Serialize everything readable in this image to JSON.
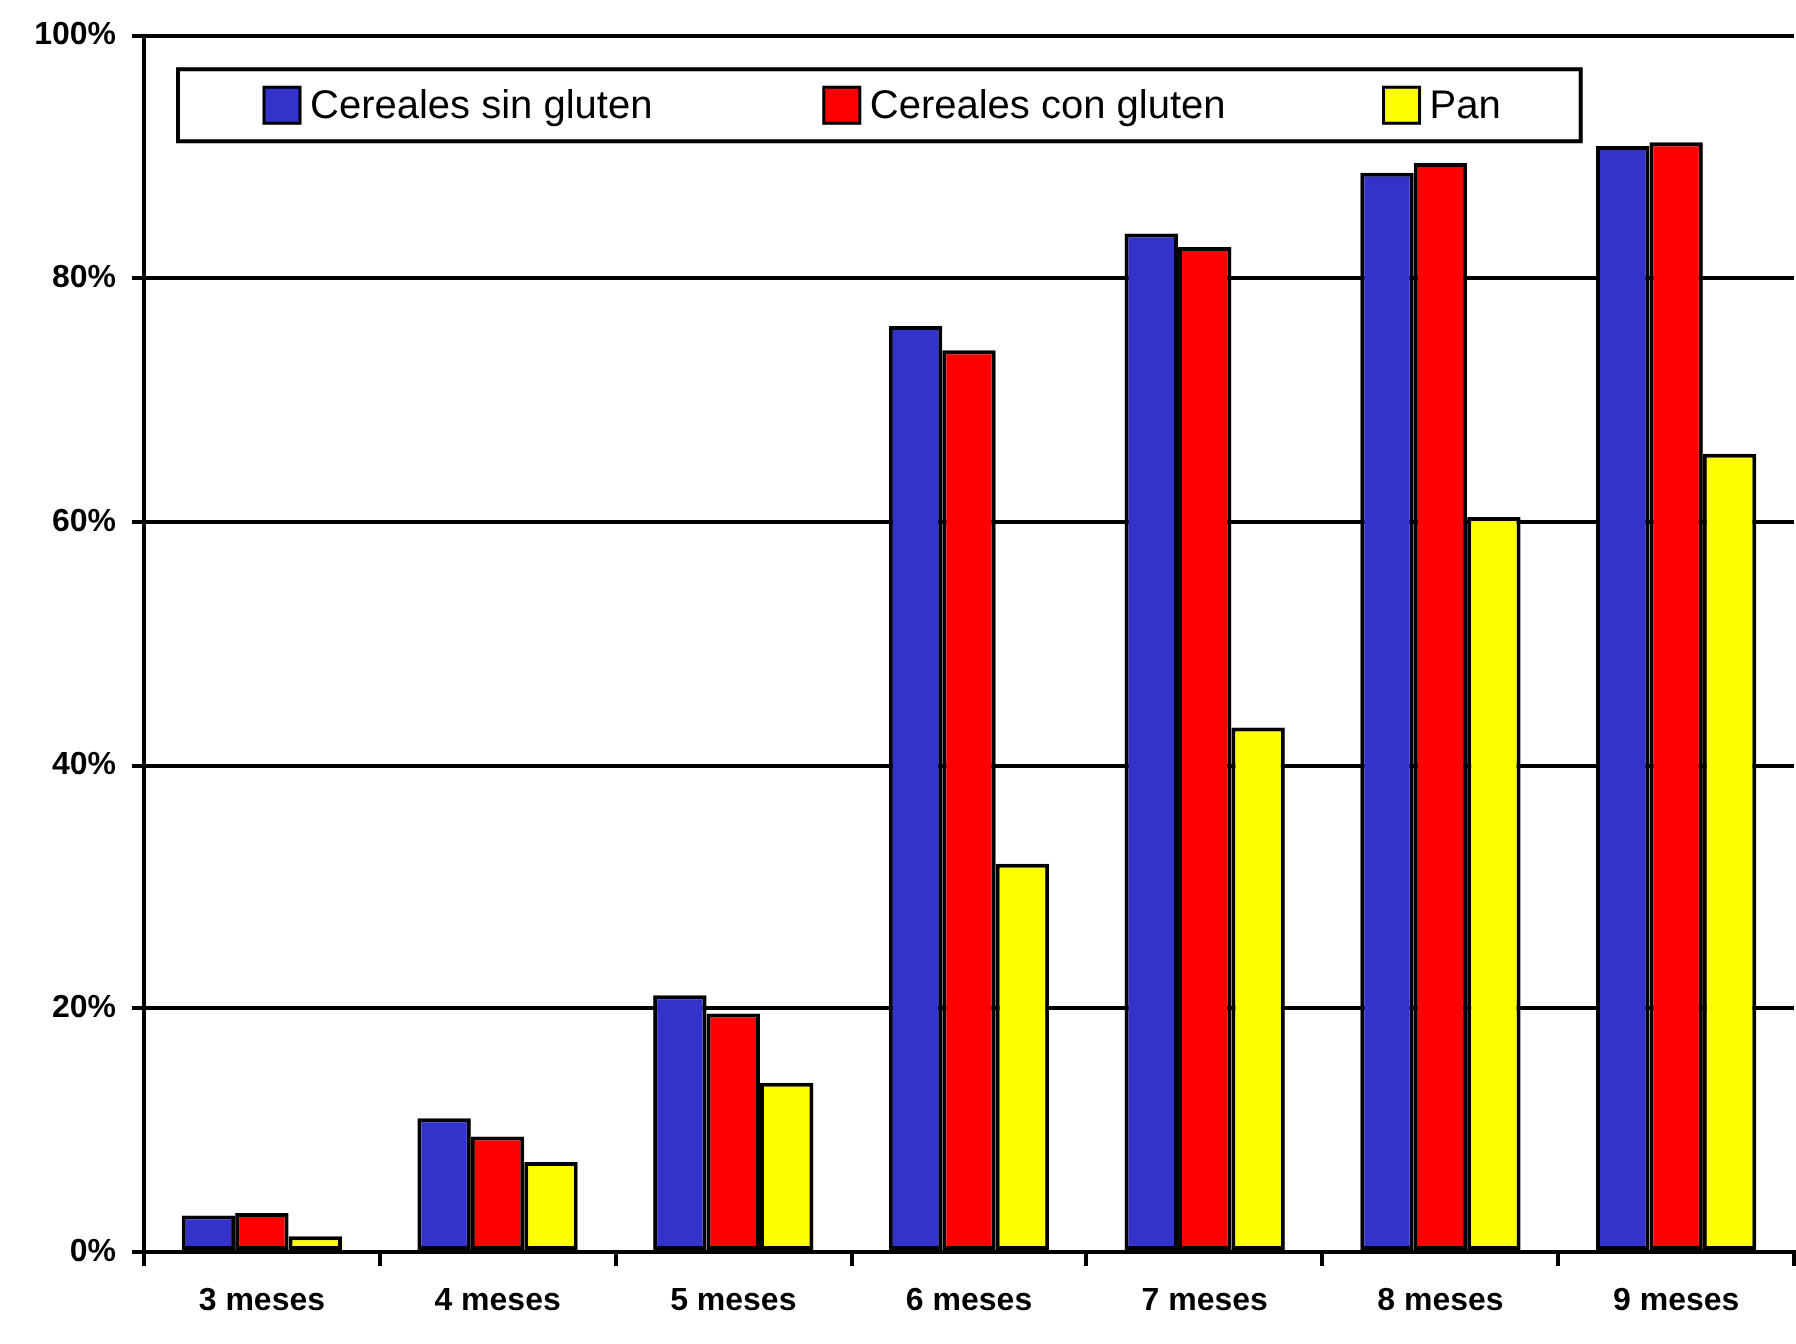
{
  "chart_data": {
    "type": "bar",
    "categories": [
      "3 meses",
      "4 meses",
      "5 meses",
      "6 meses",
      "7 meses",
      "8 meses",
      "9 meses"
    ],
    "series": [
      {
        "name": "Cereales sin gluten",
        "color": "#3333cc",
        "values": [
          3.0,
          11.0,
          21.1,
          76.1,
          83.7,
          88.7,
          90.9
        ]
      },
      {
        "name": "Cereales con gluten",
        "color": "#ff0000",
        "values": [
          3.2,
          9.5,
          19.6,
          74.1,
          82.6,
          89.5,
          91.2
        ]
      },
      {
        "name": "Pan",
        "color": "#ffff00",
        "values": [
          1.3,
          7.4,
          13.9,
          31.9,
          43.1,
          60.4,
          65.6
        ]
      }
    ],
    "ylim": [
      0,
      100
    ],
    "yticks": [
      {
        "value": 0,
        "label": "0%"
      },
      {
        "value": 20,
        "label": "20%"
      },
      {
        "value": 40,
        "label": "40%"
      },
      {
        "value": 60,
        "label": "60%"
      },
      {
        "value": 80,
        "label": "80%"
      },
      {
        "value": 100,
        "label": "100%"
      }
    ],
    "grid": "y",
    "legend": "top"
  }
}
